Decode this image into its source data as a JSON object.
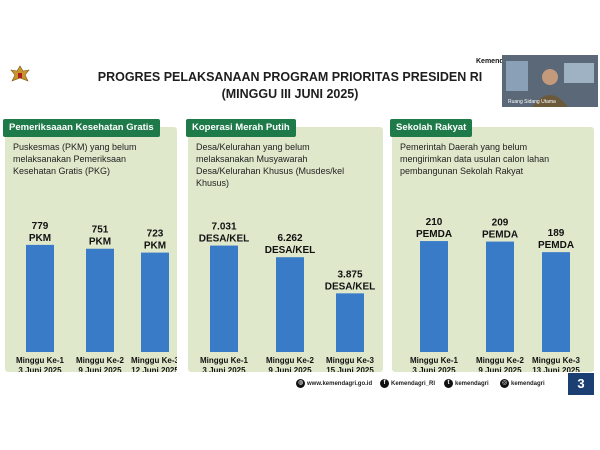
{
  "slide": {
    "title_line1": "PROGRES PELAKSANAAN PROGRAM PRIORITAS PRESIDEN RI",
    "title_line2": "(MINGGU III JUNI 2025)",
    "brand": "Kemend",
    "video_caption": "Ruang Sidang Utama",
    "page_number": "3"
  },
  "footer": {
    "website": "www.kemendagri.go.id",
    "facebook": "Kemendagri_RI",
    "twitter": "kemendagri",
    "instagram": "kemendagri"
  },
  "colors": {
    "panel_bg": "#dfe8cb",
    "header_bg": "#1f7a4a",
    "bar": "#3a7bc8"
  },
  "chart_data": [
    {
      "type": "bar",
      "title": "Pemeriksaaan Kesehatan Gratis",
      "description_lines": [
        "Puskesmas (PKM) yang belum",
        "melaksanakan Pemeriksaan",
        "Kesehatan Gratis (PKG)"
      ],
      "categories": [
        [
          "Minggu Ke-1",
          "3 Juni 2025"
        ],
        [
          "Minggu Ke-2",
          "9 Juni 2025"
        ],
        [
          "Minggu Ke-3",
          "12 Juni 2025"
        ]
      ],
      "values": [
        779,
        751,
        723
      ],
      "value_labels": [
        "779",
        "751",
        "723"
      ],
      "unit": "PKM",
      "ylim": [
        0,
        800
      ]
    },
    {
      "type": "bar",
      "title": "Koperasi Merah Putih",
      "description_lines": [
        "Desa/Kelurahan yang belum",
        "melaksanakan Musyawarah",
        "Desa/Kelurahan Khusus (Musdes/kel",
        "Khusus)"
      ],
      "categories": [
        [
          "Minggu Ke-1",
          "3 Juni 2025"
        ],
        [
          "Minggu Ke-2",
          "9 Juni 2025"
        ],
        [
          "Minggu Ke-3",
          "15 Juni 2025"
        ]
      ],
      "values": [
        7031,
        6262,
        3875
      ],
      "value_labels": [
        "7.031",
        "6.262",
        "3.875"
      ],
      "unit": "DESA/KEL",
      "ylim": [
        0,
        7400
      ]
    },
    {
      "type": "bar",
      "title": "Sekolah Rakyat",
      "description_lines": [
        "Pemerintah Daerah yang belum",
        "mengirimkan data usulan calon lahan",
        "pembangunan Sekolah Rakyat"
      ],
      "categories": [
        [
          "Minggu Ke-1",
          "3 Juni 2025"
        ],
        [
          "Minggu Ke-2",
          "9 Juni 2025"
        ],
        [
          "Minggu Ke-3",
          "13 Juni 2025"
        ]
      ],
      "values": [
        210,
        209,
        189
      ],
      "value_labels": [
        "210",
        "209",
        "189"
      ],
      "unit": "PEMDA",
      "ylim": [
        0,
        212
      ]
    }
  ]
}
